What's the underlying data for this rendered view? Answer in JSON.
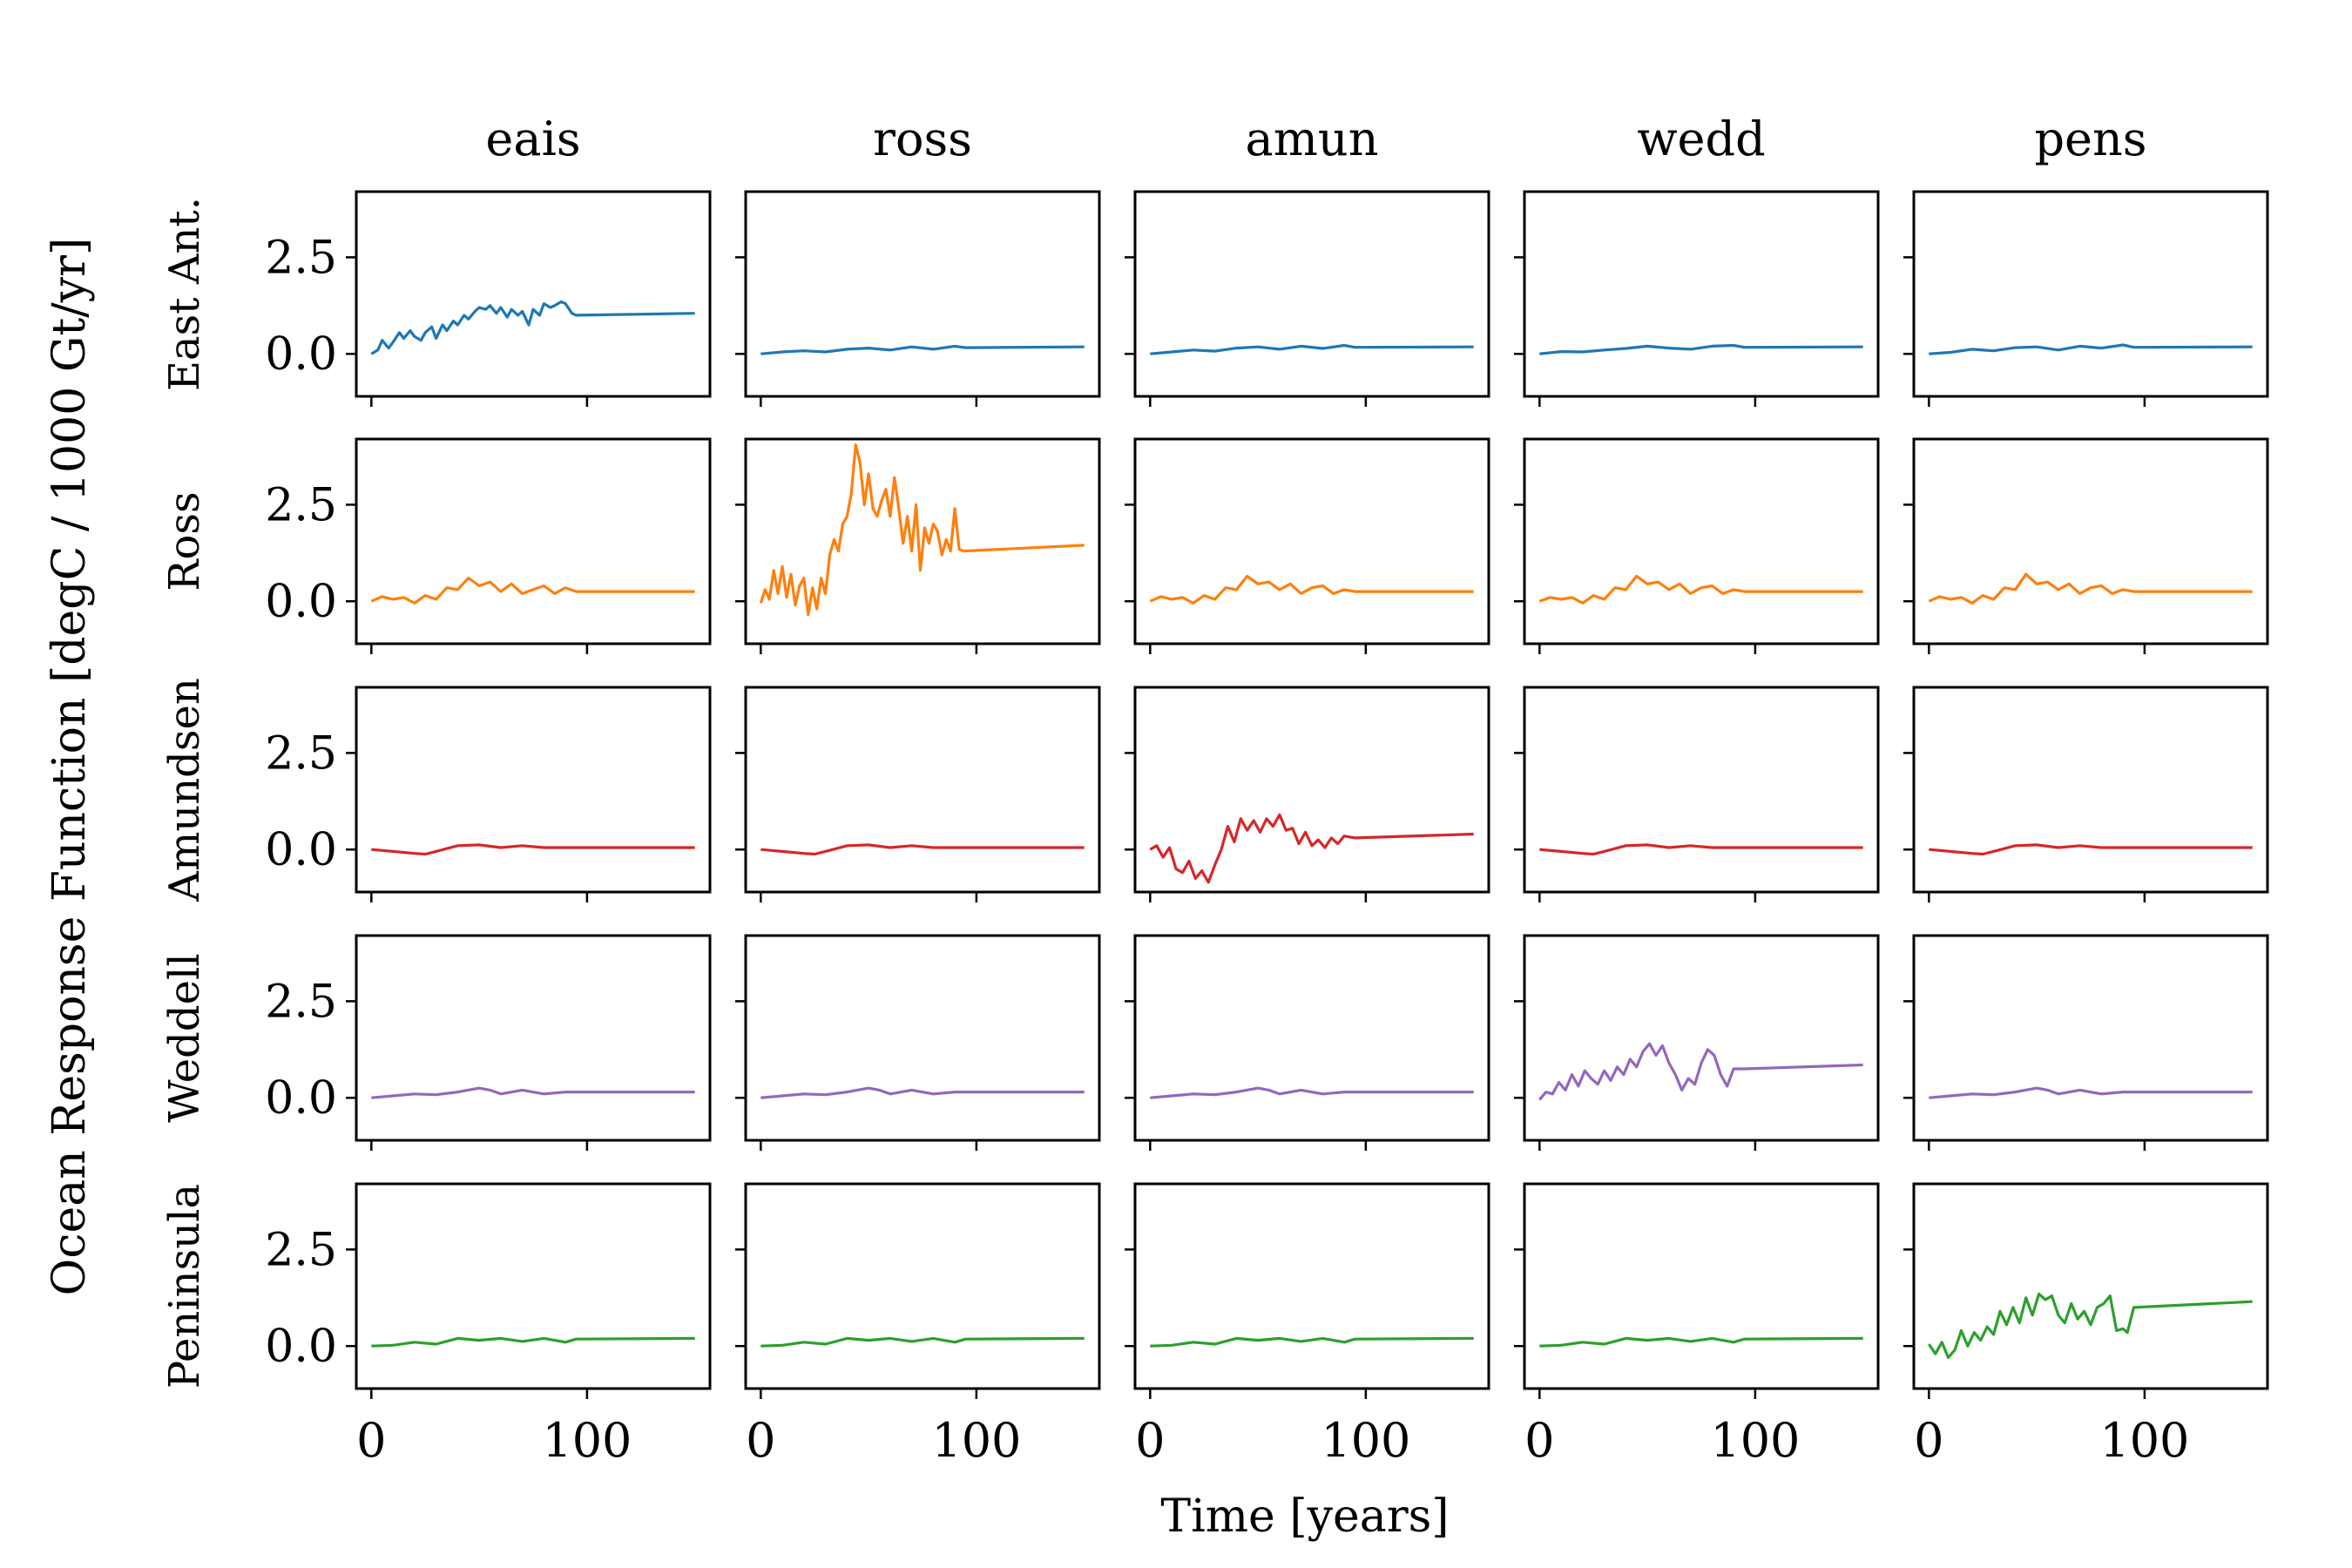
{
  "chart_data": {
    "type": "line",
    "layout": "grid",
    "xlabel": "Time [years]",
    "ylabel": "Ocean Response Function [degC / 1000 Gt/yr]",
    "xlim": [
      -7,
      157
    ],
    "ylim": [
      -1.1,
      4.2
    ],
    "xticks": [
      0,
      100
    ],
    "xtick_labels": [
      "0",
      "100"
    ],
    "yticks": [
      0.0,
      2.5
    ],
    "ytick_labels": [
      "0.0",
      "2.5"
    ],
    "columns": [
      "eais",
      "ross",
      "amun",
      "wedd",
      "pens"
    ],
    "rows": [
      "East Ant.",
      "Ross",
      "Amundsen",
      "Weddell",
      "Peninsula"
    ],
    "row_colors": [
      "#1f77b4",
      "#ff7f0e",
      "#d62728",
      "#9467bd",
      "#2ca02c"
    ],
    "grid": false,
    "panels": [
      [
        {
          "x": [
            0,
            3,
            5,
            8,
            10,
            13,
            15,
            18,
            20,
            23,
            25,
            28,
            30,
            33,
            35,
            38,
            40,
            43,
            45,
            48,
            50,
            53,
            55,
            58,
            60,
            63,
            65,
            68,
            70,
            73,
            75,
            78,
            80,
            83,
            85,
            88,
            90,
            93,
            95,
            150
          ],
          "y": [
            0.0,
            0.1,
            0.35,
            0.15,
            0.3,
            0.55,
            0.4,
            0.6,
            0.45,
            0.35,
            0.55,
            0.7,
            0.4,
            0.75,
            0.6,
            0.85,
            0.75,
            1.0,
            0.9,
            1.1,
            1.2,
            1.15,
            1.25,
            1.05,
            1.2,
            0.95,
            1.15,
            1.0,
            1.1,
            0.75,
            1.15,
            1.0,
            1.3,
            1.2,
            1.25,
            1.35,
            1.3,
            1.05,
            1.0,
            1.05
          ]
        },
        {
          "x": [
            0,
            10,
            20,
            30,
            40,
            50,
            60,
            70,
            80,
            90,
            95,
            150
          ],
          "y": [
            0.0,
            0.05,
            0.08,
            0.05,
            0.12,
            0.15,
            0.1,
            0.18,
            0.12,
            0.2,
            0.16,
            0.18
          ]
        },
        {
          "x": [
            0,
            10,
            20,
            30,
            40,
            50,
            60,
            70,
            80,
            90,
            95,
            150
          ],
          "y": [
            0.0,
            0.05,
            0.1,
            0.07,
            0.15,
            0.18,
            0.12,
            0.2,
            0.14,
            0.22,
            0.17,
            0.18
          ]
        },
        {
          "x": [
            0,
            10,
            20,
            30,
            40,
            50,
            60,
            70,
            80,
            90,
            95,
            150
          ],
          "y": [
            0.0,
            0.06,
            0.05,
            0.1,
            0.14,
            0.2,
            0.15,
            0.12,
            0.2,
            0.22,
            0.17,
            0.18
          ]
        },
        {
          "x": [
            0,
            10,
            20,
            30,
            40,
            50,
            60,
            70,
            80,
            90,
            95,
            150
          ],
          "y": [
            0.0,
            0.04,
            0.12,
            0.08,
            0.16,
            0.18,
            0.1,
            0.2,
            0.15,
            0.23,
            0.17,
            0.18
          ]
        }
      ],
      [
        {
          "x": [
            0,
            5,
            10,
            15,
            20,
            25,
            30,
            35,
            40,
            45,
            50,
            55,
            60,
            65,
            70,
            75,
            80,
            85,
            90,
            95,
            150
          ],
          "y": [
            0.0,
            0.12,
            0.05,
            0.1,
            -0.05,
            0.15,
            0.05,
            0.35,
            0.3,
            0.6,
            0.4,
            0.5,
            0.25,
            0.45,
            0.2,
            0.3,
            0.4,
            0.2,
            0.35,
            0.25,
            0.25
          ]
        },
        {
          "x": [
            0,
            2,
            4,
            6,
            8,
            10,
            12,
            14,
            16,
            18,
            20,
            22,
            24,
            26,
            28,
            30,
            32,
            34,
            36,
            38,
            40,
            42,
            44,
            46,
            48,
            50,
            52,
            54,
            56,
            58,
            60,
            62,
            64,
            66,
            68,
            70,
            72,
            74,
            76,
            78,
            80,
            82,
            84,
            86,
            88,
            90,
            92,
            94,
            150
          ],
          "y": [
            -0.05,
            0.3,
            0.05,
            0.8,
            0.2,
            0.9,
            0.1,
            0.7,
            -0.1,
            0.4,
            0.6,
            -0.35,
            0.35,
            -0.2,
            0.6,
            0.2,
            1.2,
            1.6,
            1.3,
            2.0,
            2.2,
            2.8,
            4.05,
            3.6,
            2.5,
            3.3,
            2.4,
            2.2,
            2.6,
            2.9,
            2.2,
            3.2,
            2.4,
            1.5,
            2.2,
            1.3,
            2.5,
            0.8,
            1.9,
            1.5,
            2.0,
            1.8,
            1.2,
            1.6,
            1.3,
            2.4,
            1.35,
            1.3,
            1.45
          ]
        },
        {
          "x": [
            0,
            5,
            10,
            15,
            20,
            25,
            30,
            35,
            40,
            45,
            50,
            55,
            60,
            65,
            70,
            75,
            80,
            85,
            90,
            95,
            150
          ],
          "y": [
            0.0,
            0.12,
            0.05,
            0.1,
            -0.05,
            0.15,
            0.05,
            0.35,
            0.3,
            0.65,
            0.45,
            0.5,
            0.3,
            0.45,
            0.2,
            0.35,
            0.4,
            0.2,
            0.3,
            0.25,
            0.25
          ]
        },
        {
          "x": [
            0,
            5,
            10,
            15,
            20,
            25,
            30,
            35,
            40,
            45,
            50,
            55,
            60,
            65,
            70,
            75,
            80,
            85,
            90,
            95,
            150
          ],
          "y": [
            0.0,
            0.1,
            0.05,
            0.1,
            -0.05,
            0.15,
            0.05,
            0.35,
            0.3,
            0.65,
            0.45,
            0.5,
            0.3,
            0.45,
            0.2,
            0.35,
            0.4,
            0.2,
            0.3,
            0.25,
            0.25
          ]
        },
        {
          "x": [
            0,
            5,
            10,
            15,
            20,
            25,
            30,
            35,
            40,
            45,
            50,
            55,
            60,
            65,
            70,
            75,
            80,
            85,
            90,
            95,
            150
          ],
          "y": [
            0.0,
            0.12,
            0.05,
            0.1,
            -0.05,
            0.15,
            0.05,
            0.35,
            0.3,
            0.7,
            0.45,
            0.5,
            0.3,
            0.45,
            0.2,
            0.35,
            0.4,
            0.2,
            0.3,
            0.25,
            0.25
          ]
        }
      ],
      [
        {
          "x": [
            0,
            10,
            20,
            25,
            30,
            40,
            50,
            60,
            70,
            80,
            90,
            95,
            150
          ],
          "y": [
            0.0,
            -0.05,
            -0.1,
            -0.12,
            -0.05,
            0.1,
            0.12,
            0.05,
            0.1,
            0.05,
            0.05,
            0.05,
            0.05
          ]
        },
        {
          "x": [
            0,
            10,
            20,
            25,
            30,
            40,
            50,
            60,
            70,
            80,
            90,
            95,
            150
          ],
          "y": [
            0.0,
            -0.05,
            -0.1,
            -0.12,
            -0.05,
            0.1,
            0.12,
            0.05,
            0.1,
            0.05,
            0.05,
            0.05,
            0.05
          ]
        },
        {
          "x": [
            0,
            3,
            6,
            9,
            12,
            15,
            18,
            21,
            24,
            27,
            30,
            33,
            36,
            39,
            42,
            45,
            48,
            51,
            54,
            57,
            60,
            63,
            66,
            69,
            72,
            75,
            78,
            81,
            84,
            87,
            90,
            95,
            150
          ],
          "y": [
            0.0,
            0.1,
            -0.2,
            0.05,
            -0.5,
            -0.6,
            -0.3,
            -0.75,
            -0.55,
            -0.85,
            -0.4,
            0.0,
            0.6,
            0.2,
            0.8,
            0.5,
            0.75,
            0.45,
            0.8,
            0.6,
            0.9,
            0.5,
            0.55,
            0.15,
            0.45,
            0.1,
            0.25,
            0.05,
            0.3,
            0.15,
            0.35,
            0.3,
            0.4
          ]
        },
        {
          "x": [
            0,
            10,
            20,
            25,
            30,
            40,
            50,
            60,
            70,
            80,
            90,
            95,
            150
          ],
          "y": [
            0.0,
            -0.05,
            -0.1,
            -0.12,
            -0.05,
            0.1,
            0.12,
            0.05,
            0.1,
            0.05,
            0.05,
            0.05,
            0.05
          ]
        },
        {
          "x": [
            0,
            10,
            20,
            25,
            30,
            40,
            50,
            60,
            70,
            80,
            90,
            95,
            150
          ],
          "y": [
            0.0,
            -0.05,
            -0.1,
            -0.12,
            -0.05,
            0.1,
            0.12,
            0.05,
            0.1,
            0.05,
            0.05,
            0.05,
            0.05
          ]
        }
      ],
      [
        {
          "x": [
            0,
            10,
            20,
            30,
            40,
            50,
            55,
            60,
            70,
            80,
            90,
            95,
            150
          ],
          "y": [
            0.0,
            0.05,
            0.1,
            0.08,
            0.15,
            0.25,
            0.2,
            0.1,
            0.2,
            0.1,
            0.15,
            0.15,
            0.15
          ]
        },
        {
          "x": [
            0,
            10,
            20,
            30,
            40,
            50,
            55,
            60,
            70,
            80,
            90,
            95,
            150
          ],
          "y": [
            0.0,
            0.05,
            0.1,
            0.08,
            0.15,
            0.25,
            0.2,
            0.1,
            0.2,
            0.1,
            0.15,
            0.15,
            0.15
          ]
        },
        {
          "x": [
            0,
            10,
            20,
            30,
            40,
            50,
            55,
            60,
            70,
            80,
            90,
            95,
            150
          ],
          "y": [
            0.0,
            0.05,
            0.1,
            0.08,
            0.15,
            0.25,
            0.2,
            0.1,
            0.2,
            0.1,
            0.15,
            0.15,
            0.15
          ]
        },
        {
          "x": [
            0,
            3,
            6,
            9,
            12,
            15,
            18,
            21,
            24,
            27,
            30,
            33,
            36,
            39,
            42,
            45,
            48,
            51,
            54,
            57,
            60,
            63,
            66,
            69,
            72,
            75,
            78,
            81,
            84,
            87,
            90,
            95,
            150
          ],
          "y": [
            -0.05,
            0.15,
            0.1,
            0.4,
            0.2,
            0.6,
            0.3,
            0.7,
            0.5,
            0.35,
            0.7,
            0.45,
            0.8,
            0.6,
            1.0,
            0.8,
            1.2,
            1.4,
            1.1,
            1.35,
            0.9,
            0.6,
            0.2,
            0.5,
            0.35,
            0.9,
            1.25,
            1.1,
            0.6,
            0.3,
            0.75,
            0.75,
            0.85
          ]
        },
        {
          "x": [
            0,
            10,
            20,
            30,
            40,
            50,
            55,
            60,
            70,
            80,
            90,
            95,
            150
          ],
          "y": [
            0.0,
            0.05,
            0.1,
            0.08,
            0.15,
            0.25,
            0.2,
            0.1,
            0.2,
            0.1,
            0.15,
            0.15,
            0.15
          ]
        }
      ],
      [
        {
          "x": [
            0,
            10,
            20,
            30,
            40,
            50,
            60,
            70,
            80,
            90,
            95,
            150
          ],
          "y": [
            0.0,
            0.02,
            0.1,
            0.05,
            0.2,
            0.15,
            0.2,
            0.12,
            0.2,
            0.1,
            0.18,
            0.2
          ]
        },
        {
          "x": [
            0,
            10,
            20,
            30,
            40,
            50,
            60,
            70,
            80,
            90,
            95,
            150
          ],
          "y": [
            0.0,
            0.02,
            0.1,
            0.05,
            0.2,
            0.15,
            0.2,
            0.12,
            0.2,
            0.1,
            0.18,
            0.2
          ]
        },
        {
          "x": [
            0,
            10,
            20,
            30,
            40,
            50,
            60,
            70,
            80,
            90,
            95,
            150
          ],
          "y": [
            0.0,
            0.02,
            0.1,
            0.05,
            0.2,
            0.15,
            0.2,
            0.12,
            0.2,
            0.1,
            0.18,
            0.2
          ]
        },
        {
          "x": [
            0,
            10,
            20,
            30,
            40,
            50,
            60,
            70,
            80,
            90,
            95,
            150
          ],
          "y": [
            0.0,
            0.02,
            0.1,
            0.05,
            0.2,
            0.15,
            0.2,
            0.12,
            0.2,
            0.1,
            0.18,
            0.2
          ]
        },
        {
          "x": [
            0,
            3,
            6,
            9,
            12,
            15,
            18,
            21,
            24,
            27,
            30,
            33,
            36,
            39,
            42,
            45,
            48,
            51,
            54,
            57,
            60,
            63,
            66,
            69,
            72,
            75,
            78,
            81,
            84,
            87,
            90,
            92,
            95,
            150
          ],
          "y": [
            0.05,
            -0.2,
            0.1,
            -0.3,
            -0.1,
            0.4,
            0.0,
            0.35,
            0.15,
            0.5,
            0.3,
            0.9,
            0.55,
            1.0,
            0.6,
            1.25,
            0.8,
            1.35,
            1.2,
            1.3,
            0.8,
            0.6,
            1.1,
            0.7,
            0.9,
            0.55,
            1.0,
            1.1,
            1.3,
            0.4,
            0.45,
            0.35,
            1.0,
            1.15
          ]
        }
      ]
    ]
  }
}
